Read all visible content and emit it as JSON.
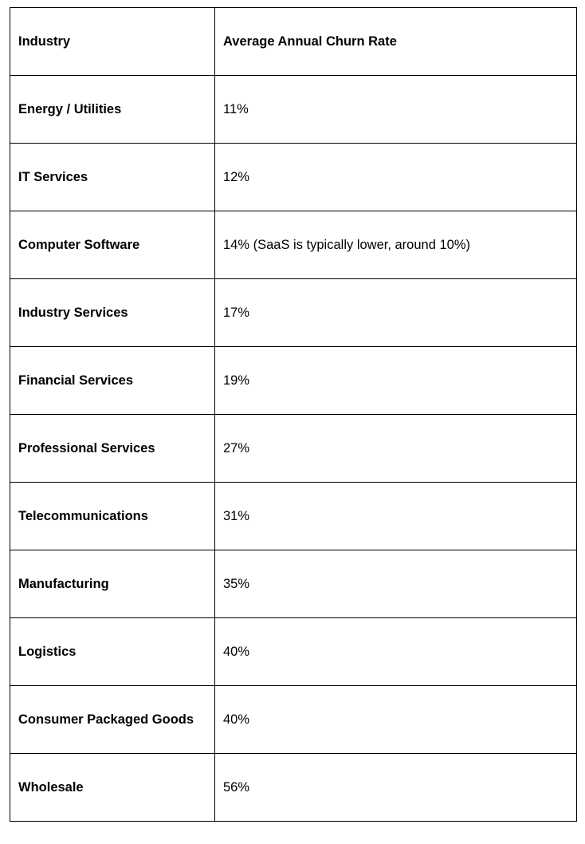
{
  "table": {
    "headers": {
      "industry": "Industry",
      "rate": "Average Annual Churn Rate"
    },
    "rows": [
      {
        "industry": "Energy / Utilities",
        "rate": "11%"
      },
      {
        "industry": "IT Services",
        "rate": "12%"
      },
      {
        "industry": "Computer Software",
        "rate": "14% (SaaS is typically lower, around 10%)"
      },
      {
        "industry": "Industry Services",
        "rate": "17%"
      },
      {
        "industry": "Financial Services",
        "rate": "19%"
      },
      {
        "industry": "Professional Services",
        "rate": "27%"
      },
      {
        "industry": "Telecommunications",
        "rate": "31%"
      },
      {
        "industry": "Manufacturing",
        "rate": "35%"
      },
      {
        "industry": "Logistics",
        "rate": "40%"
      },
      {
        "industry": "Consumer Packaged Goods",
        "rate": "40%"
      },
      {
        "industry": "Wholesale",
        "rate": "56%"
      }
    ]
  }
}
